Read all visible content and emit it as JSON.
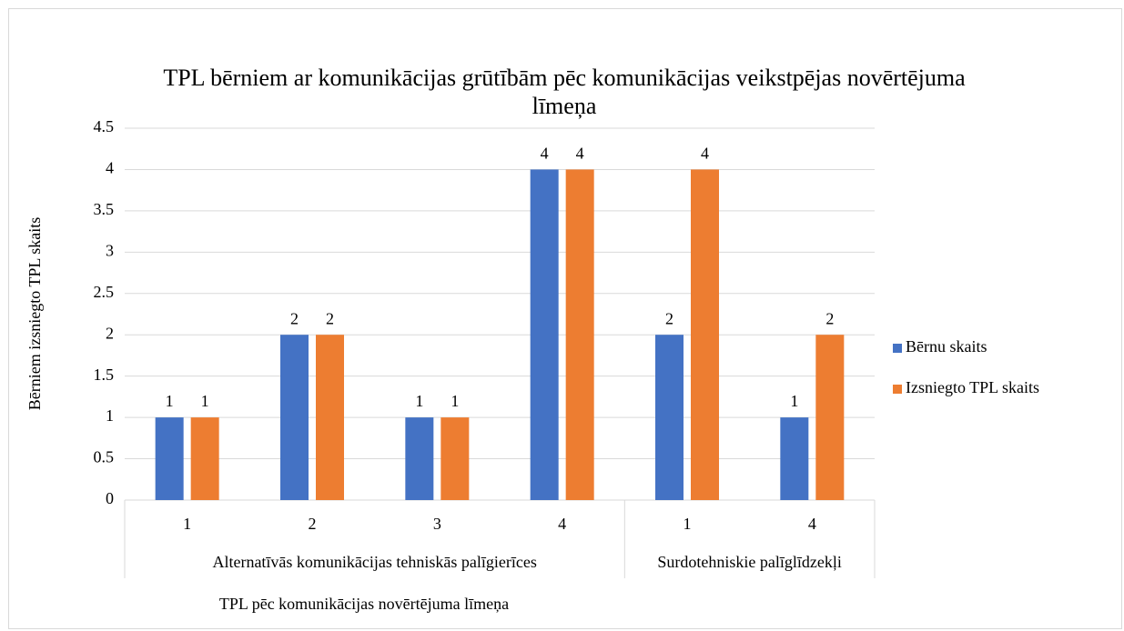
{
  "chart_data": {
    "type": "bar",
    "title": "TPL bērniem ar komunikācijas grūtībām pēc komunikācijas veikstpējas novērtējuma līmeņa",
    "x_label": "TPL pēc komunikācijas novērtējuma līmeņa",
    "y_label": "Bērniem izsniegto TPL skaits",
    "groups": [
      {
        "name": "Alternatīvās komunikācijas tehniskās palīgierīces",
        "categories": [
          "1",
          "2",
          "3",
          "4"
        ]
      },
      {
        "name": "Surdotehniskie palīglīdzekļi",
        "categories": [
          "1",
          "4"
        ]
      }
    ],
    "series": [
      {
        "name": "Bērnu skaits",
        "color": "#4472c4",
        "values": [
          1,
          2,
          1,
          4,
          2,
          1
        ]
      },
      {
        "name": "Izsniegto TPL skaits",
        "color": "#ed7d31",
        "values": [
          1,
          2,
          1,
          4,
          4,
          2
        ]
      }
    ],
    "ylim": [
      0,
      4.5
    ],
    "yticks": [
      0,
      0.5,
      1,
      1.5,
      2,
      2.5,
      3,
      3.5,
      4,
      4.5
    ],
    "grid": true,
    "legend": "right"
  }
}
